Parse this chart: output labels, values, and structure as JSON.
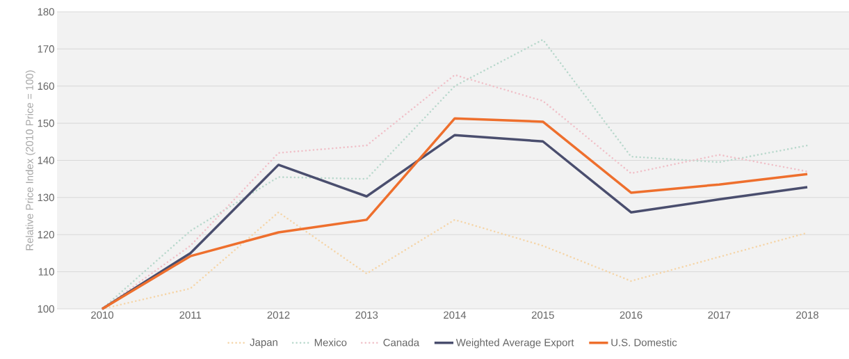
{
  "chart_data": {
    "type": "line",
    "ylabel": "Relative Price Index (2010 Price = 100)",
    "categories": [
      "2010",
      "2011",
      "2012",
      "2013",
      "2014",
      "2015",
      "2016",
      "2017",
      "2018"
    ],
    "ylim": [
      100,
      180
    ],
    "yticks": [
      100,
      110,
      120,
      130,
      140,
      150,
      160,
      170,
      180
    ],
    "grid": "y",
    "legend": "bottom",
    "series": [
      {
        "name": "Japan",
        "color": "#f5d5a8",
        "line_style": "dotted",
        "values": [
          100,
          105.5,
          126,
          109.5,
          124,
          117,
          107.5,
          114,
          120.5
        ]
      },
      {
        "name": "Mexico",
        "color": "#b8d8cc",
        "line_style": "dotted",
        "values": [
          100,
          121,
          135.5,
          135,
          160,
          172.5,
          141,
          139.5,
          144
        ]
      },
      {
        "name": "Canada",
        "color": "#f0c0c8",
        "line_style": "dotted",
        "values": [
          100,
          117,
          142,
          144,
          163,
          156,
          136.5,
          141.5,
          137
        ]
      },
      {
        "name": "Weighted Average Export",
        "color": "#4a4e6e",
        "line_style": "solid",
        "values": [
          100,
          115,
          138.8,
          130.3,
          146.8,
          145.1,
          126,
          129.5,
          132.8
        ]
      },
      {
        "name": "U.S. Domestic",
        "color": "#ee6f2d",
        "line_style": "solid",
        "values": [
          100,
          114.2,
          120.6,
          124,
          151.3,
          150.4,
          131.3,
          133.5,
          136.3
        ]
      }
    ]
  }
}
